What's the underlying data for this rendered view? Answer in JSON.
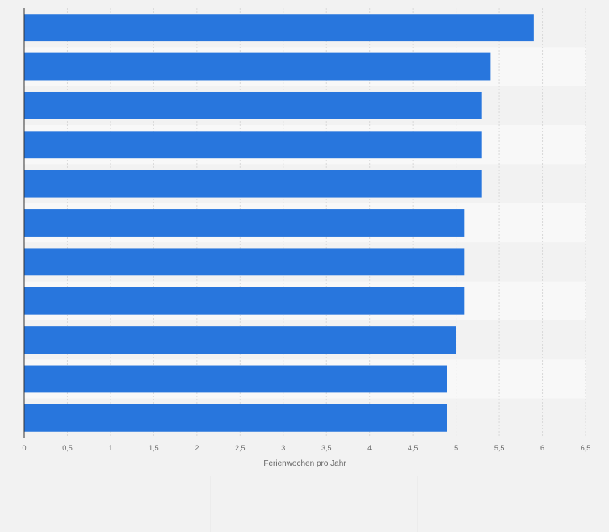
{
  "chart_data": {
    "type": "bar",
    "orientation": "horizontal",
    "categories": [
      "",
      "",
      "",
      "",
      "",
      "",
      "",
      "",
      "",
      "",
      ""
    ],
    "values": [
      5.9,
      5.4,
      5.3,
      5.3,
      5.3,
      5.1,
      5.1,
      5.1,
      5.0,
      4.9,
      4.9
    ],
    "xlabel": "Ferienwochen pro Jahr",
    "ylabel": "",
    "xlim": [
      0,
      6.5
    ],
    "ticks": [
      {
        "value": 0,
        "label": "0"
      },
      {
        "value": 0.5,
        "label": "0,5"
      },
      {
        "value": 1,
        "label": "1"
      },
      {
        "value": 1.5,
        "label": "1,5"
      },
      {
        "value": 2,
        "label": "2"
      },
      {
        "value": 2.5,
        "label": "2,5"
      },
      {
        "value": 3,
        "label": "3"
      },
      {
        "value": 3.5,
        "label": "3,5"
      },
      {
        "value": 4,
        "label": "4"
      },
      {
        "value": 4.5,
        "label": "4,5"
      },
      {
        "value": 5,
        "label": "5"
      },
      {
        "value": 5.5,
        "label": "5,5"
      },
      {
        "value": 6,
        "label": "6"
      },
      {
        "value": 6.5,
        "label": "6,5"
      }
    ],
    "grid": true,
    "bar_color": "#2876dd",
    "stripe_colors": [
      "#f2f2f2",
      "#f8f8f8"
    ],
    "grid_color": "#d9d9d9",
    "axis_color": "#333333"
  }
}
